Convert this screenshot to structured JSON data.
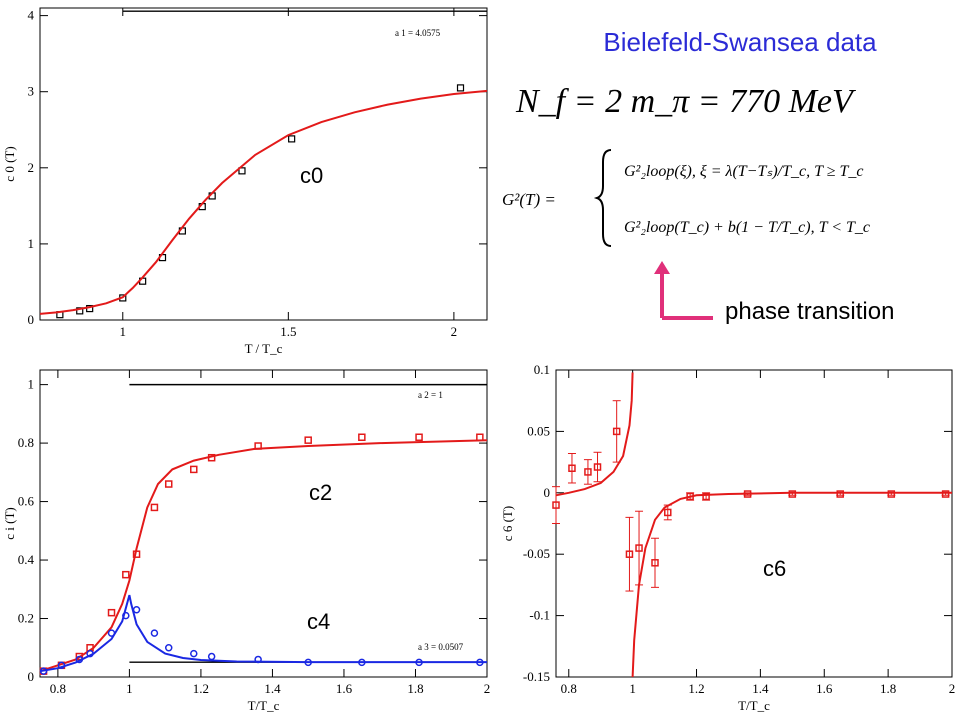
{
  "header": {
    "title": "Bielefeld-Swansea data",
    "params_line": "N_f = 2   m_π = 770 MeV",
    "formula_lhs": "G²(T) =",
    "formula_case1": "G²₂loop(ξ),  ξ = λ(T−Tₛ)/T_c,   T ≥ T_c",
    "formula_case2": "G²₂loop(T_c) + b(1 − T/T_c),   T < T_c",
    "arrow_label": "phase transition",
    "arrow_color": "#e0307a",
    "title_color": "#2b2bd6"
  },
  "colors": {
    "red": "#e31a1a",
    "blue": "#1a28e3",
    "black": "#000000"
  },
  "chart_data": [
    {
      "id": "c0",
      "type": "scatter",
      "panel_tag": "c0",
      "xlabel": "T / T_c",
      "ylabel": "c 0 (T)",
      "xlim": [
        0.75,
        2.1
      ],
      "ylim": [
        0,
        4.1
      ],
      "xticks": [
        1,
        1.5,
        2
      ],
      "xtick_labels": [
        "1",
        "1.5",
        "2"
      ],
      "yticks": [
        0,
        1,
        2,
        3,
        4
      ],
      "ytick_labels": [
        "0",
        "1",
        "2",
        "3",
        "4"
      ],
      "reference": {
        "label": "a 1 = 4.0575",
        "value": 4.0575,
        "x_start": 1.0
      },
      "series": [
        {
          "kind": "points",
          "color": "red",
          "x": [
            0.81,
            0.87,
            0.9,
            1.0,
            1.06,
            1.12,
            1.18,
            1.24,
            1.27,
            1.36,
            1.51,
            2.02
          ],
          "y": [
            0.07,
            0.12,
            0.15,
            0.29,
            0.51,
            0.82,
            1.17,
            1.49,
            1.63,
            1.96,
            2.38,
            3.05
          ]
        },
        {
          "kind": "line",
          "color": "red",
          "x": [
            0.75,
            0.8,
            0.85,
            0.9,
            0.95,
            1.0,
            1.03,
            1.06,
            1.1,
            1.15,
            1.2,
            1.25,
            1.3,
            1.4,
            1.5,
            1.6,
            1.7,
            1.8,
            1.9,
            2.0,
            2.1
          ],
          "y": [
            0.08,
            0.1,
            0.13,
            0.17,
            0.22,
            0.3,
            0.42,
            0.56,
            0.76,
            1.05,
            1.33,
            1.58,
            1.8,
            2.17,
            2.43,
            2.6,
            2.73,
            2.83,
            2.91,
            2.97,
            3.01
          ]
        }
      ]
    },
    {
      "id": "c2c4",
      "type": "scatter",
      "panel_tag": "c2",
      "panel_tag_2": "c4",
      "xlabel": "T/T_c",
      "ylabel": "c i (T)",
      "xlim": [
        0.75,
        2.0
      ],
      "ylim": [
        0,
        1.05
      ],
      "xticks": [
        0.8,
        1,
        1.2,
        1.4,
        1.6,
        1.8,
        2
      ],
      "xtick_labels": [
        "0.8",
        "1",
        "1.2",
        "1.4",
        "1.6",
        "1.8",
        "2"
      ],
      "yticks": [
        0,
        0.2,
        0.4,
        0.6,
        0.8,
        1
      ],
      "ytick_labels": [
        "0",
        "0.2",
        "0.4",
        "0.6",
        "0.8",
        "1"
      ],
      "reference": {
        "label": "a 2 = 1",
        "value": 1.0,
        "x_start": 1.0
      },
      "reference_2": {
        "label": "a 3 = 0.0507",
        "value": 0.0507,
        "x_start": 1.0
      },
      "series": [
        {
          "kind": "points",
          "color": "red",
          "x": [
            0.76,
            0.81,
            0.86,
            0.89,
            0.95,
            0.99,
            1.02,
            1.07,
            1.11,
            1.18,
            1.23,
            1.36,
            1.5,
            1.65,
            1.81,
            1.98
          ],
          "y": [
            0.02,
            0.04,
            0.07,
            0.1,
            0.22,
            0.35,
            0.42,
            0.58,
            0.66,
            0.71,
            0.75,
            0.79,
            0.81,
            0.82,
            0.82,
            0.82
          ]
        },
        {
          "kind": "line",
          "color": "red",
          "x": [
            0.75,
            0.8,
            0.85,
            0.9,
            0.95,
            0.98,
            1.0,
            1.02,
            1.05,
            1.08,
            1.12,
            1.18,
            1.25,
            1.35,
            1.5,
            1.7,
            2.0
          ],
          "y": [
            0.02,
            0.04,
            0.06,
            0.1,
            0.17,
            0.25,
            0.33,
            0.44,
            0.58,
            0.66,
            0.71,
            0.74,
            0.76,
            0.78,
            0.79,
            0.8,
            0.81
          ]
        },
        {
          "kind": "points",
          "color": "blue",
          "x": [
            0.76,
            0.81,
            0.86,
            0.89,
            0.95,
            0.99,
            1.02,
            1.07,
            1.11,
            1.18,
            1.23,
            1.36,
            1.5,
            1.65,
            1.81,
            1.98
          ],
          "y": [
            0.02,
            0.04,
            0.06,
            0.08,
            0.15,
            0.21,
            0.23,
            0.15,
            0.1,
            0.08,
            0.07,
            0.06,
            0.05,
            0.05,
            0.05,
            0.05
          ]
        },
        {
          "kind": "line",
          "color": "blue",
          "x": [
            0.75,
            0.8,
            0.85,
            0.9,
            0.95,
            0.98,
            1.0,
            1.005,
            1.02,
            1.05,
            1.1,
            1.15,
            1.2,
            1.3,
            1.5,
            2.0
          ],
          "y": [
            0.02,
            0.03,
            0.05,
            0.08,
            0.13,
            0.19,
            0.28,
            0.25,
            0.18,
            0.12,
            0.08,
            0.065,
            0.058,
            0.053,
            0.051,
            0.051
          ]
        }
      ]
    },
    {
      "id": "c6",
      "type": "scatter",
      "panel_tag": "c6",
      "xlabel": "T/T_c",
      "ylabel": "c 6 (T)",
      "xlim": [
        0.76,
        2.0
      ],
      "ylim": [
        -0.15,
        0.1
      ],
      "xticks": [
        0.8,
        1,
        1.2,
        1.4,
        1.6,
        1.8,
        2
      ],
      "xtick_labels": [
        "0.8",
        "1",
        "1.2",
        "1.4",
        "1.6",
        "1.8",
        "2"
      ],
      "yticks": [
        -0.15,
        -0.1,
        -0.05,
        0,
        0.05,
        0.1
      ],
      "ytick_labels": [
        "-0.15",
        "-0.1",
        "-0.05",
        "0",
        "0.05",
        "0.1"
      ],
      "series": [
        {
          "kind": "points",
          "color": "red",
          "x": [
            0.76,
            0.81,
            0.86,
            0.89,
            0.95,
            0.99,
            1.02,
            1.07,
            1.11,
            1.18,
            1.23,
            1.36,
            1.5,
            1.65,
            1.81,
            1.98
          ],
          "y": [
            -0.01,
            0.02,
            0.017,
            0.021,
            0.05,
            -0.05,
            -0.045,
            -0.057,
            -0.016,
            -0.003,
            -0.003,
            -0.001,
            -0.001,
            -0.001,
            -0.001,
            -0.001
          ],
          "err": [
            0.015,
            0.012,
            0.01,
            0.012,
            0.025,
            0.03,
            0.03,
            0.02,
            0.006,
            0.003,
            0.003,
            0.001,
            0.001,
            0.001,
            0.001,
            0.001
          ]
        },
        {
          "kind": "line",
          "color": "red",
          "x": [
            0.76,
            0.8,
            0.85,
            0.9,
            0.94,
            0.97,
            0.99,
            0.997,
            1.0
          ],
          "y": [
            -0.002,
            0.0,
            0.003,
            0.008,
            0.017,
            0.03,
            0.055,
            0.075,
            0.098
          ]
        },
        {
          "kind": "line",
          "color": "red",
          "x": [
            1.0,
            1.005,
            1.02,
            1.04,
            1.07,
            1.1,
            1.15,
            1.2,
            1.3,
            1.5,
            2.0
          ],
          "y": [
            -0.15,
            -0.12,
            -0.075,
            -0.045,
            -0.022,
            -0.012,
            -0.005,
            -0.002,
            -0.001,
            0.0,
            0.0
          ]
        }
      ]
    }
  ]
}
